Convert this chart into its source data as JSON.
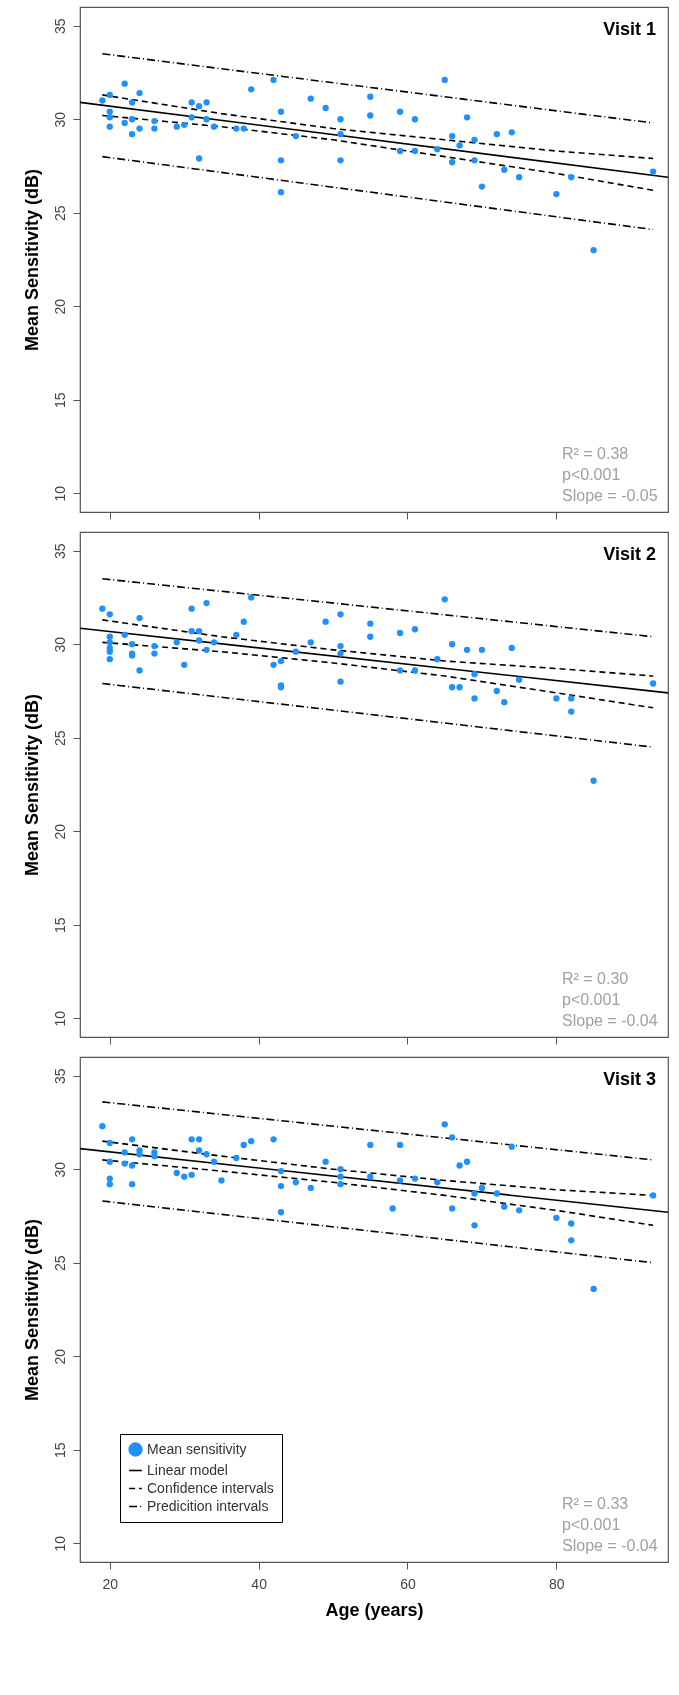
{
  "chart_data": [
    {
      "type": "scatter",
      "title": "Visit 1",
      "ylabel": "Mean Sensitivity (dB)",
      "xlim": [
        16,
        95
      ],
      "ylim": [
        9,
        36
      ],
      "xticks": [
        20,
        40,
        60,
        80
      ],
      "yticks": [
        10,
        15,
        20,
        25,
        30,
        35
      ],
      "tick_labels": "y",
      "annotations": [
        "R² = 0.38",
        "p<0.001",
        "Slope = -0.05"
      ],
      "series": [
        {
          "type": "scatter",
          "marker": "circle",
          "color": "#1e90ff",
          "x": [
            19,
            20,
            20,
            20,
            20,
            22,
            23,
            22,
            23,
            23,
            24,
            24,
            26,
            26,
            29,
            30,
            31,
            31,
            32,
            33,
            32,
            33,
            34,
            37,
            38,
            39,
            42,
            43,
            43,
            43,
            45,
            47,
            49,
            51,
            51,
            51,
            55,
            55,
            59,
            59,
            61,
            61,
            64,
            65,
            66,
            66,
            67,
            68,
            69,
            69,
            70,
            72,
            73,
            74,
            75,
            80,
            82,
            85,
            93
          ],
          "values": [
            31.0,
            31.3,
            30.4,
            30.1,
            29.6,
            31.9,
            30.9,
            29.8,
            30.0,
            29.2,
            31.4,
            29.5,
            29.9,
            29.5,
            29.6,
            29.7,
            30.9,
            30.1,
            30.7,
            30.9,
            27.9,
            30.0,
            29.6,
            29.5,
            29.5,
            31.6,
            32.1,
            30.4,
            27.8,
            26.1,
            29.1,
            31.1,
            30.6,
            30.0,
            29.2,
            27.8,
            31.2,
            30.2,
            30.4,
            28.3,
            30.0,
            28.3,
            28.4,
            32.1,
            29.1,
            27.7,
            28.6,
            30.1,
            28.9,
            27.8,
            26.4,
            29.2,
            27.3,
            29.3,
            26.9,
            26.0,
            26.9,
            23.0,
            27.2
          ]
        },
        {
          "type": "line",
          "color": "#000000",
          "line_style": "solid",
          "x": [
            16,
            95
          ],
          "values": [
            30.9,
            26.9
          ]
        },
        {
          "type": "line",
          "color": "#000000",
          "line_style": "dashed",
          "x": [
            19,
            35,
            50,
            65,
            80,
            93
          ],
          "values": [
            31.3,
            30.3,
            29.5,
            28.9,
            28.3,
            27.9
          ]
        },
        {
          "type": "line",
          "color": "#000000",
          "line_style": "dashed",
          "x": [
            19,
            35,
            50,
            65,
            80,
            93
          ],
          "values": [
            30.2,
            29.6,
            28.9,
            28.0,
            27.1,
            26.2
          ]
        },
        {
          "type": "line",
          "color": "#000000",
          "line_style": "dashdot",
          "x": [
            19,
            93
          ],
          "values": [
            33.5,
            29.8
          ]
        },
        {
          "type": "line",
          "color": "#000000",
          "line_style": "dashdot",
          "x": [
            19,
            93
          ],
          "values": [
            28.0,
            24.1
          ]
        }
      ]
    },
    {
      "type": "scatter",
      "title": "Visit 2",
      "ylabel": "Mean Sensitivity (dB)",
      "xlim": [
        16,
        95
      ],
      "ylim": [
        9,
        36
      ],
      "xticks": [
        20,
        40,
        60,
        80
      ],
      "yticks": [
        10,
        15,
        20,
        25,
        30,
        35
      ],
      "tick_labels": "y",
      "annotations": [
        "R² = 0.30",
        "p<0.001",
        "Slope = -0.04"
      ],
      "series": [
        {
          "type": "scatter",
          "marker": "circle",
          "color": "#1e90ff",
          "x": [
            19,
            20,
            20,
            20,
            20,
            20,
            20,
            22,
            23,
            23,
            23,
            24,
            24,
            26,
            26,
            29,
            30,
            31,
            31,
            32,
            32,
            33,
            33,
            34,
            37,
            38,
            39,
            42,
            43,
            43,
            43,
            45,
            47,
            49,
            51,
            51,
            51,
            51,
            55,
            55,
            59,
            59,
            61,
            61,
            64,
            65,
            66,
            66,
            67,
            68,
            69,
            69,
            70,
            72,
            73,
            74,
            75,
            80,
            82,
            82,
            85,
            93
          ],
          "values": [
            31.9,
            31.6,
            30.4,
            30.1,
            29.8,
            29.6,
            29.2,
            30.5,
            30.0,
            29.5,
            29.4,
            31.4,
            28.6,
            29.9,
            29.5,
            30.1,
            28.9,
            31.9,
            30.7,
            30.7,
            30.2,
            32.2,
            29.7,
            30.1,
            30.5,
            31.2,
            32.5,
            28.9,
            29.1,
            27.8,
            27.7,
            29.6,
            30.1,
            31.2,
            31.6,
            29.9,
            29.5,
            28.0,
            31.1,
            30.4,
            30.6,
            28.6,
            30.8,
            28.6,
            29.2,
            32.4,
            30.0,
            27.7,
            27.7,
            29.7,
            28.4,
            27.1,
            29.7,
            27.5,
            26.9,
            29.8,
            28.1,
            27.1,
            27.1,
            26.4,
            22.7,
            27.9
          ]
        },
        {
          "type": "line",
          "color": "#000000",
          "line_style": "solid",
          "x": [
            16,
            95
          ],
          "values": [
            30.85,
            27.4
          ]
        },
        {
          "type": "line",
          "color": "#000000",
          "line_style": "dashed",
          "x": [
            19,
            35,
            50,
            65,
            80,
            93
          ],
          "values": [
            31.3,
            30.4,
            29.7,
            29.1,
            28.7,
            28.3
          ]
        },
        {
          "type": "line",
          "color": "#000000",
          "line_style": "dashed",
          "x": [
            19,
            35,
            50,
            65,
            80,
            93
          ],
          "values": [
            30.1,
            29.6,
            29.0,
            28.3,
            27.4,
            26.6
          ]
        },
        {
          "type": "line",
          "color": "#000000",
          "line_style": "dashdot",
          "x": [
            19,
            93
          ],
          "values": [
            33.5,
            30.4
          ]
        },
        {
          "type": "line",
          "color": "#000000",
          "line_style": "dashdot",
          "x": [
            19,
            93
          ],
          "values": [
            27.9,
            24.5
          ]
        }
      ]
    },
    {
      "type": "scatter",
      "title": "Visit 3",
      "xlabel": "Age (years)",
      "ylabel": "Mean Sensitivity (dB)",
      "xlim": [
        16,
        95
      ],
      "ylim": [
        9,
        36
      ],
      "xticks": [
        20,
        40,
        60,
        80
      ],
      "yticks": [
        10,
        15,
        20,
        25,
        30,
        35
      ],
      "legend": "bottom left",
      "annotations": [
        "R² = 0.33",
        "p<0.001",
        "Slope = -0.04"
      ],
      "series": [
        {
          "type": "scatter",
          "marker": "circle",
          "name": "Mean sensitivity",
          "color": "#1e90ff",
          "x": [
            19,
            20,
            20,
            20,
            20,
            22,
            22,
            23,
            23,
            23,
            24,
            24,
            26,
            26,
            29,
            30,
            31,
            31,
            32,
            32,
            33,
            34,
            35,
            37,
            38,
            39,
            42,
            43,
            43,
            43,
            45,
            47,
            49,
            51,
            51,
            51,
            55,
            55,
            58,
            59,
            59,
            61,
            64,
            65,
            66,
            66,
            67,
            68,
            69,
            69,
            70,
            72,
            73,
            74,
            75,
            80,
            82,
            82,
            85,
            93
          ],
          "values": [
            32.3,
            31.4,
            30.4,
            29.5,
            29.2,
            30.9,
            30.3,
            31.6,
            30.2,
            29.2,
            31.0,
            30.8,
            30.9,
            30.7,
            29.8,
            29.6,
            31.6,
            29.7,
            31.6,
            31.0,
            30.8,
            30.4,
            29.4,
            30.6,
            31.3,
            31.5,
            31.6,
            29.9,
            29.1,
            27.7,
            29.3,
            29.0,
            30.4,
            30.0,
            29.6,
            29.2,
            31.3,
            29.6,
            27.9,
            31.3,
            29.4,
            29.5,
            29.3,
            32.4,
            31.7,
            27.9,
            30.2,
            30.4,
            28.7,
            27.0,
            29.0,
            28.7,
            28.0,
            31.2,
            27.8,
            27.4,
            27.1,
            26.2,
            23.6,
            28.6
          ]
        },
        {
          "type": "line",
          "name": "Linear model",
          "color": "#000000",
          "line_style": "solid",
          "x": [
            16,
            95
          ],
          "values": [
            31.1,
            27.7
          ]
        },
        {
          "type": "line",
          "name": "Confidence intervals",
          "color": "#000000",
          "line_style": "dashed",
          "x": [
            19,
            35,
            50,
            65,
            80,
            93
          ],
          "values": [
            31.5,
            30.7,
            30.0,
            29.4,
            28.9,
            28.6
          ]
        },
        {
          "type": "line",
          "color": "#000000",
          "line_style": "dashed",
          "x": [
            19,
            35,
            50,
            65,
            80,
            93
          ],
          "values": [
            30.5,
            29.9,
            29.3,
            28.6,
            27.8,
            27.0
          ]
        },
        {
          "type": "line",
          "name": "Predicition intervals",
          "color": "#000000",
          "line_style": "dashdot",
          "x": [
            19,
            93
          ],
          "values": [
            33.6,
            30.5
          ]
        },
        {
          "type": "line",
          "color": "#000000",
          "line_style": "dashdot",
          "x": [
            19,
            93
          ],
          "values": [
            28.3,
            25.0
          ]
        }
      ]
    }
  ]
}
